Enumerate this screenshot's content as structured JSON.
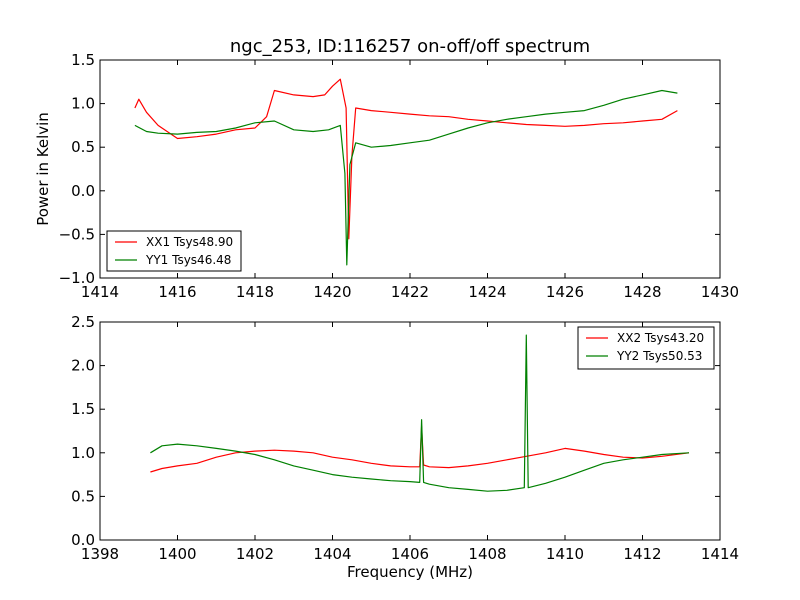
{
  "chart_data": [
    {
      "type": "line",
      "title": "ngc_253, ID:116257 on-off/off spectrum",
      "xlabel": "",
      "ylabel": "Power in Kelvin",
      "xlim": [
        1414,
        1430
      ],
      "ylim": [
        -1.0,
        1.5
      ],
      "xticks": [
        1414,
        1416,
        1418,
        1420,
        1422,
        1424,
        1426,
        1428,
        1430
      ],
      "yticks": [
        -1.0,
        -0.5,
        0.0,
        0.5,
        1.0,
        1.5
      ],
      "xtick_labels": [
        "1414",
        "1416",
        "1418",
        "1420",
        "1422",
        "1424",
        "1426",
        "1428",
        "1430"
      ],
      "ytick_labels": [
        "−1.0",
        "−0.5",
        "0.0",
        "0.5",
        "1.0",
        "1.5"
      ],
      "legend": "lower-left",
      "series": [
        {
          "name": "XX1 Tsys48.90",
          "color": "#ff0000",
          "x": [
            1414.9,
            1415.0,
            1415.2,
            1415.5,
            1416.0,
            1416.5,
            1417.0,
            1417.5,
            1418.0,
            1418.3,
            1418.5,
            1419.0,
            1419.5,
            1419.8,
            1420.0,
            1420.2,
            1420.35,
            1420.42,
            1420.5,
            1420.6,
            1421.0,
            1421.5,
            1422.0,
            1422.5,
            1423.0,
            1423.5,
            1424.0,
            1424.5,
            1425.0,
            1425.5,
            1426.0,
            1426.5,
            1427.0,
            1427.5,
            1428.0,
            1428.5,
            1428.9
          ],
          "y": [
            0.95,
            1.05,
            0.9,
            0.75,
            0.6,
            0.62,
            0.65,
            0.7,
            0.72,
            0.85,
            1.15,
            1.1,
            1.08,
            1.1,
            1.2,
            1.28,
            0.95,
            -0.55,
            0.4,
            0.95,
            0.92,
            0.9,
            0.88,
            0.86,
            0.85,
            0.82,
            0.8,
            0.78,
            0.76,
            0.75,
            0.74,
            0.75,
            0.77,
            0.78,
            0.8,
            0.82,
            0.92
          ]
        },
        {
          "name": "YY1 Tsys46.48",
          "color": "#008000",
          "x": [
            1414.9,
            1415.2,
            1415.5,
            1416.0,
            1416.5,
            1417.0,
            1417.5,
            1418.0,
            1418.5,
            1419.0,
            1419.5,
            1419.9,
            1420.2,
            1420.32,
            1420.37,
            1420.45,
            1420.6,
            1421.0,
            1421.5,
            1422.0,
            1422.5,
            1423.0,
            1423.5,
            1424.0,
            1424.5,
            1425.0,
            1425.5,
            1426.0,
            1426.5,
            1427.0,
            1427.5,
            1428.0,
            1428.5,
            1428.9
          ],
          "y": [
            0.75,
            0.68,
            0.66,
            0.65,
            0.67,
            0.68,
            0.72,
            0.78,
            0.8,
            0.7,
            0.68,
            0.7,
            0.75,
            0.2,
            -0.85,
            0.3,
            0.55,
            0.5,
            0.52,
            0.55,
            0.58,
            0.65,
            0.72,
            0.78,
            0.82,
            0.85,
            0.88,
            0.9,
            0.92,
            0.98,
            1.05,
            1.1,
            1.15,
            1.12
          ]
        }
      ]
    },
    {
      "type": "line",
      "title": "",
      "xlabel": "Frequency (MHz)",
      "ylabel": "",
      "xlim": [
        1398,
        1414
      ],
      "ylim": [
        0.0,
        2.5
      ],
      "xticks": [
        1398,
        1400,
        1402,
        1404,
        1406,
        1408,
        1410,
        1412,
        1414
      ],
      "yticks": [
        0.0,
        0.5,
        1.0,
        1.5,
        2.0,
        2.5
      ],
      "xtick_labels": [
        "1398",
        "1400",
        "1402",
        "1404",
        "1406",
        "1408",
        "1410",
        "1412",
        "1414"
      ],
      "ytick_labels": [
        "0.0",
        "0.5",
        "1.0",
        "1.5",
        "2.0",
        "2.5"
      ],
      "legend": "upper-right",
      "series": [
        {
          "name": "XX2 Tsys43.20",
          "color": "#ff0000",
          "x": [
            1399.3,
            1399.6,
            1400.0,
            1400.5,
            1401.0,
            1401.5,
            1402.0,
            1402.5,
            1403.0,
            1403.5,
            1404.0,
            1404.5,
            1405.0,
            1405.5,
            1406.0,
            1406.25,
            1406.3,
            1406.35,
            1406.5,
            1407.0,
            1407.5,
            1408.0,
            1408.5,
            1409.0,
            1409.5,
            1410.0,
            1410.5,
            1411.0,
            1411.5,
            1412.0,
            1412.5,
            1413.2
          ],
          "y": [
            0.78,
            0.82,
            0.85,
            0.88,
            0.95,
            1.0,
            1.02,
            1.03,
            1.02,
            1.0,
            0.95,
            0.92,
            0.88,
            0.85,
            0.84,
            0.84,
            1.3,
            0.86,
            0.84,
            0.83,
            0.85,
            0.88,
            0.92,
            0.96,
            1.0,
            1.05,
            1.02,
            0.98,
            0.95,
            0.94,
            0.96,
            1.0
          ]
        },
        {
          "name": "YY2 Tsys50.53",
          "color": "#008000",
          "x": [
            1399.3,
            1399.6,
            1400.0,
            1400.5,
            1401.0,
            1401.5,
            1402.0,
            1402.5,
            1403.0,
            1403.5,
            1404.0,
            1404.5,
            1405.0,
            1405.5,
            1406.0,
            1406.25,
            1406.3,
            1406.35,
            1406.5,
            1407.0,
            1407.5,
            1408.0,
            1408.5,
            1408.95,
            1409.0,
            1409.05,
            1409.5,
            1410.0,
            1410.5,
            1411.0,
            1411.5,
            1412.0,
            1412.5,
            1413.2
          ],
          "y": [
            1.0,
            1.08,
            1.1,
            1.08,
            1.05,
            1.02,
            0.98,
            0.92,
            0.85,
            0.8,
            0.75,
            0.72,
            0.7,
            0.68,
            0.67,
            0.66,
            1.38,
            0.66,
            0.64,
            0.6,
            0.58,
            0.56,
            0.57,
            0.6,
            2.35,
            0.6,
            0.65,
            0.72,
            0.8,
            0.88,
            0.92,
            0.95,
            0.98,
            1.0
          ]
        }
      ]
    }
  ]
}
